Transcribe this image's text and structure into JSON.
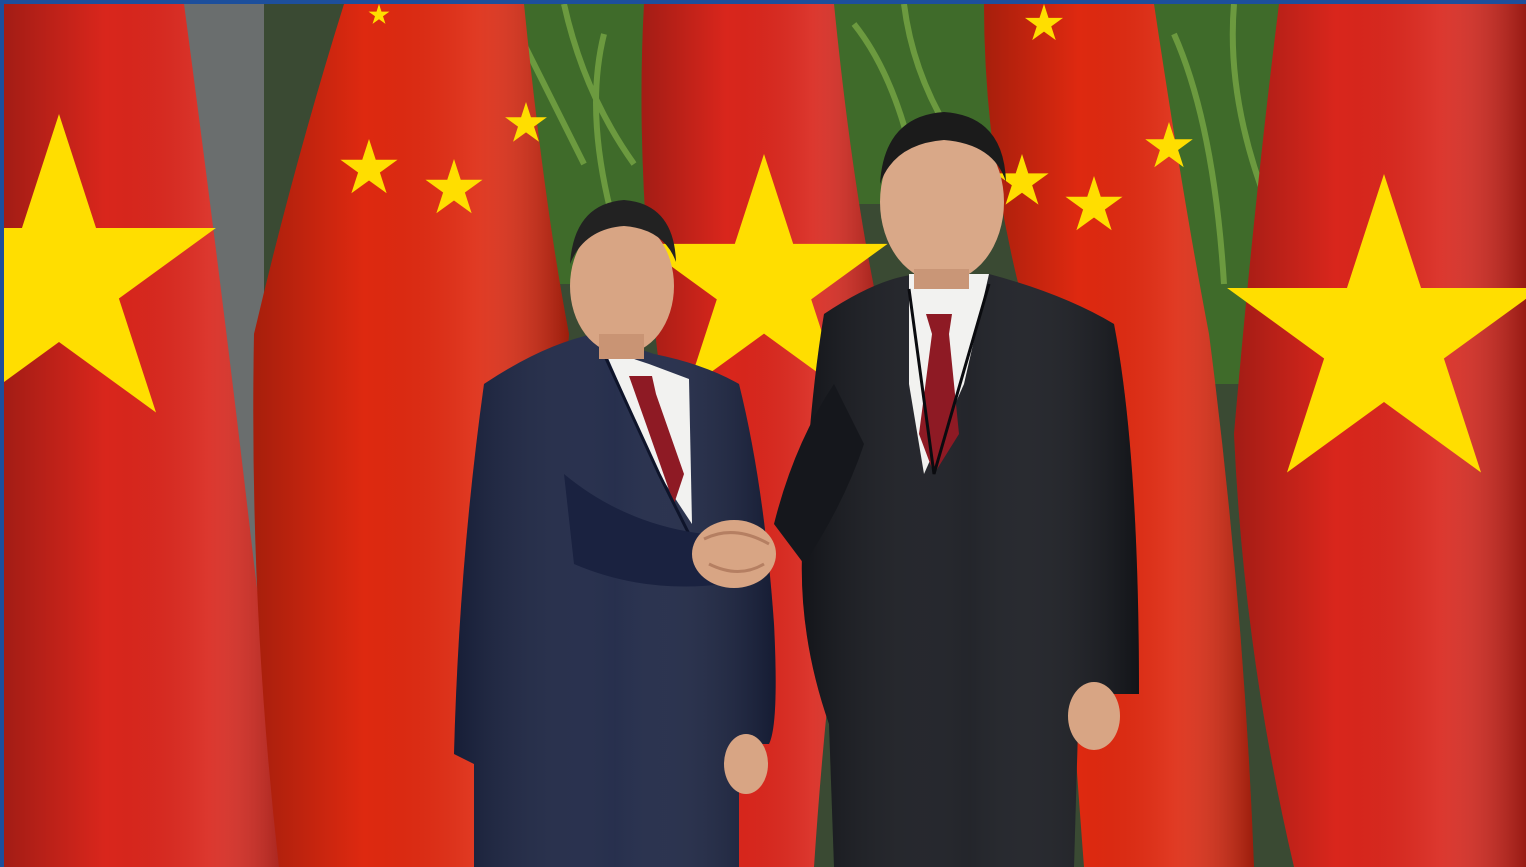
{
  "photo": {
    "subject": "photo-scene",
    "colors": {
      "border": "#1d4f9c",
      "vn_red": "#d9261c",
      "cn_red": "#de2910",
      "star_yellow": "#ffde00",
      "plant_green": "#3f6b2a",
      "suit_navy": "#1c2544",
      "suit_black": "#181a20",
      "shirt": "#f2f2f0",
      "tie": "#8e1a24",
      "skin": "#d8a584"
    },
    "flags": [
      {
        "kind": "vietnam"
      },
      {
        "kind": "china"
      },
      {
        "kind": "vietnam"
      },
      {
        "kind": "china"
      },
      {
        "kind": "vietnam"
      }
    ]
  }
}
